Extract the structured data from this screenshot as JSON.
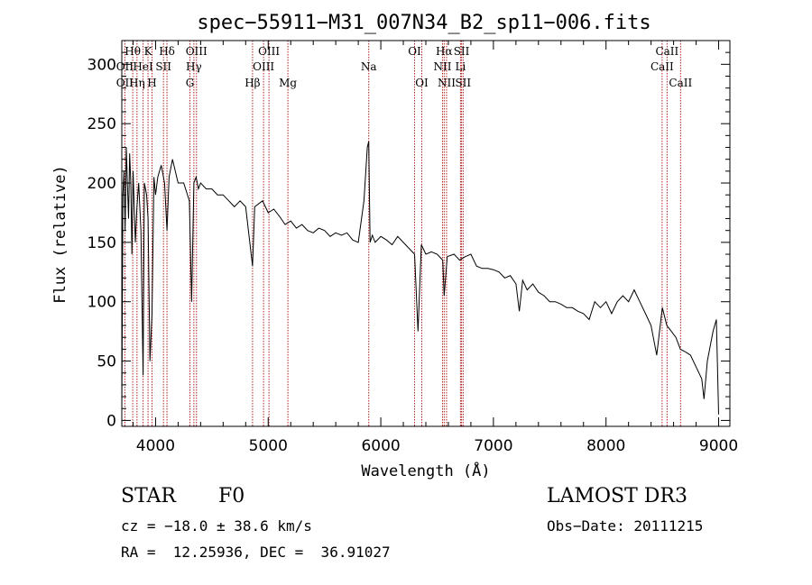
{
  "chart_data": {
    "type": "line",
    "title": "spec−55911−M31_007N34_B2_sp11−006.fits",
    "xlabel": "Wavelength (Å)",
    "ylabel": "Flux (relative)",
    "xlim": [
      3700,
      9100
    ],
    "ylim": [
      -5,
      320
    ],
    "xticks": [
      4000,
      5000,
      6000,
      7000,
      8000,
      9000
    ],
    "yticks": [
      0,
      50,
      100,
      150,
      200,
      250,
      300
    ],
    "grid": false,
    "line_color": "#000000",
    "marker_color": "#b22222",
    "x": [
      3700,
      3710,
      3720,
      3730,
      3740,
      3750,
      3760,
      3770,
      3780,
      3790,
      3800,
      3820,
      3835,
      3850,
      3870,
      3889,
      3900,
      3920,
      3933,
      3950,
      3968,
      3985,
      4000,
      4020,
      4050,
      4080,
      4101,
      4120,
      4150,
      4200,
      4250,
      4300,
      4320,
      4340,
      4360,
      4380,
      4400,
      4450,
      4500,
      4550,
      4600,
      4650,
      4700,
      4750,
      4800,
      4861,
      4880,
      4950,
      5000,
      5050,
      5100,
      5150,
      5200,
      5250,
      5300,
      5350,
      5400,
      5450,
      5500,
      5550,
      5600,
      5650,
      5700,
      5750,
      5800,
      5850,
      5880,
      5893,
      5905,
      5925,
      5950,
      6000,
      6050,
      6100,
      6150,
      6200,
      6250,
      6300,
      6330,
      6360,
      6400,
      6450,
      6500,
      6550,
      6563,
      6590,
      6650,
      6700,
      6750,
      6800,
      6850,
      6900,
      6950,
      7000,
      7050,
      7100,
      7150,
      7200,
      7230,
      7260,
      7300,
      7350,
      7400,
      7450,
      7500,
      7550,
      7600,
      7650,
      7700,
      7750,
      7800,
      7850,
      7900,
      7950,
      8000,
      8050,
      8100,
      8150,
      8200,
      8250,
      8300,
      8350,
      8400,
      8450,
      8500,
      8540,
      8580,
      8620,
      8660,
      8700,
      8750,
      8800,
      8850,
      8870,
      8900,
      8950,
      8980,
      9000
    ],
    "y": [
      5,
      190,
      210,
      160,
      230,
      200,
      170,
      225,
      200,
      140,
      210,
      150,
      180,
      200,
      160,
      38,
      200,
      190,
      170,
      50,
      90,
      205,
      190,
      205,
      215,
      200,
      160,
      205,
      220,
      200,
      200,
      185,
      100,
      200,
      205,
      195,
      200,
      195,
      195,
      190,
      190,
      185,
      180,
      185,
      180,
      130,
      180,
      185,
      175,
      178,
      172,
      165,
      168,
      162,
      165,
      160,
      158,
      162,
      160,
      155,
      158,
      156,
      158,
      152,
      150,
      185,
      230,
      235,
      150,
      156,
      150,
      155,
      152,
      148,
      155,
      150,
      145,
      140,
      75,
      148,
      140,
      142,
      140,
      135,
      105,
      138,
      140,
      135,
      138,
      140,
      130,
      128,
      128,
      127,
      125,
      120,
      122,
      115,
      92,
      118,
      110,
      115,
      108,
      105,
      100,
      100,
      98,
      95,
      95,
      92,
      90,
      85,
      100,
      95,
      100,
      90,
      100,
      105,
      100,
      110,
      100,
      90,
      80,
      55,
      95,
      80,
      75,
      70,
      60,
      58,
      55,
      45,
      35,
      18,
      50,
      75,
      85,
      5
    ],
    "emission_lines": [
      {
        "name": "Hθ",
        "wavelength": 3797,
        "row": 1
      },
      {
        "name": "OII",
        "wavelength": 3727,
        "row": 2
      },
      {
        "name": "OII",
        "wavelength": 3727,
        "row": 3
      },
      {
        "name": "Hη",
        "wavelength": 3835,
        "row": 3
      },
      {
        "name": "HeI",
        "wavelength": 3889,
        "row": 2
      },
      {
        "name": "K",
        "wavelength": 3933,
        "row": 1
      },
      {
        "name": "H",
        "wavelength": 3968,
        "row": 3
      },
      {
        "name": "SII",
        "wavelength": 4070,
        "row": 2
      },
      {
        "name": "Hδ",
        "wavelength": 4101,
        "row": 1
      },
      {
        "name": "OIII",
        "wavelength": 4363,
        "row": 1
      },
      {
        "name": "Hγ",
        "wavelength": 4340,
        "row": 2
      },
      {
        "name": "G",
        "wavelength": 4305,
        "row": 3
      },
      {
        "name": "Hβ",
        "wavelength": 4861,
        "row": 3
      },
      {
        "name": "OIII",
        "wavelength": 5007,
        "row": 1
      },
      {
        "name": "OIII",
        "wavelength": 4959,
        "row": 2
      },
      {
        "name": "Mg",
        "wavelength": 5175,
        "row": 3
      },
      {
        "name": "Na",
        "wavelength": 5893,
        "row": 2
      },
      {
        "name": "OI",
        "wavelength": 6300,
        "row": 1
      },
      {
        "name": "OI",
        "wavelength": 6364,
        "row": 3
      },
      {
        "name": "Hα",
        "wavelength": 6563,
        "row": 1
      },
      {
        "name": "NII",
        "wavelength": 6548,
        "row": 2
      },
      {
        "name": "NII",
        "wavelength": 6584,
        "row": 3
      },
      {
        "name": "SII",
        "wavelength": 6717,
        "row": 1
      },
      {
        "name": "Li",
        "wavelength": 6708,
        "row": 2
      },
      {
        "name": "SII",
        "wavelength": 6731,
        "row": 3
      },
      {
        "name": "CaII",
        "wavelength": 8542,
        "row": 1
      },
      {
        "name": "CaII",
        "wavelength": 8498,
        "row": 2
      },
      {
        "name": "CaII",
        "wavelength": 8662,
        "row": 3
      }
    ]
  },
  "info": {
    "class": "STAR",
    "subclass": "F0",
    "survey": "LAMOST DR3",
    "redshift": "cz = −18.0 ± 38.6 km/s",
    "obs_date": "Obs−Date: 20111215",
    "coords": "RA =  12.25936, DEC =  36.91027"
  }
}
